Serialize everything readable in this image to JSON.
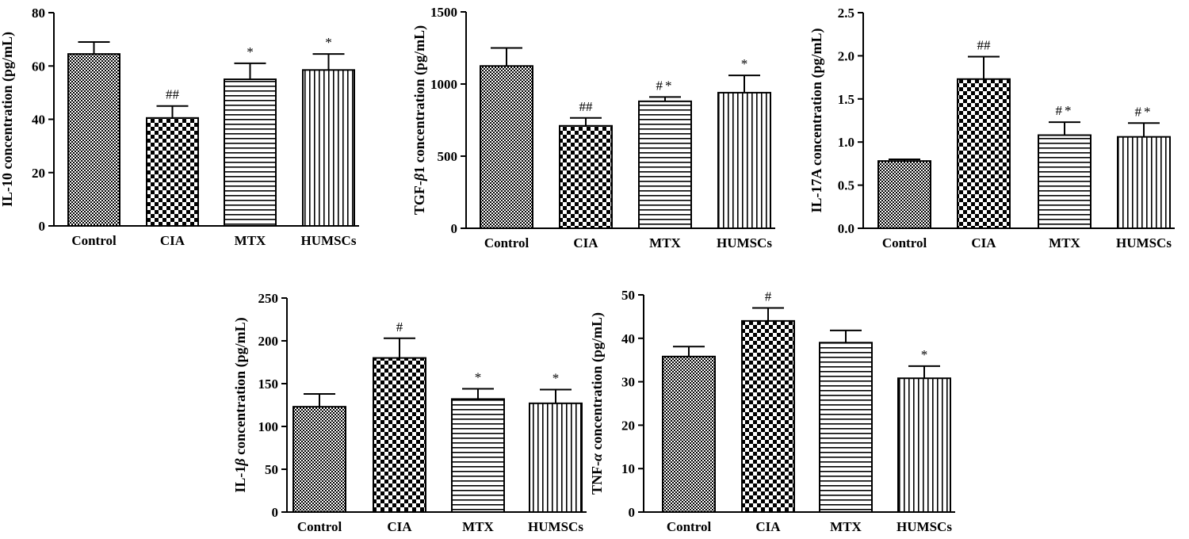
{
  "chart_data": [
    {
      "type": "bar",
      "ylabel": "IL-10 concentration (pg/mL)",
      "ylabel_parts": [
        {
          "t": "IL-10 concentration (pg/mL)",
          "i": false
        }
      ],
      "categories": [
        "Control",
        "CIA",
        "MTX",
        "HUMSCs"
      ],
      "values": [
        64.5,
        40.5,
        55,
        58.5
      ],
      "errors": [
        4.5,
        4.5,
        6,
        6
      ],
      "annotations": [
        "",
        "##",
        "*",
        "*"
      ],
      "ylim": [
        0,
        80
      ],
      "yticks": [
        0,
        20,
        40,
        60,
        80
      ],
      "ytick_labels": [
        "0",
        "20",
        "40",
        "60",
        "80"
      ]
    },
    {
      "type": "bar",
      "ylabel": "TGF-β1 concentration (pg/mL)",
      "ylabel_parts": [
        {
          "t": "TGF-",
          "i": false
        },
        {
          "t": "β",
          "i": true
        },
        {
          "t": "1 concentration (pg/mL)",
          "i": false
        }
      ],
      "categories": [
        "Control",
        "CIA",
        "MTX",
        "HUMSCs"
      ],
      "values": [
        1125,
        710,
        880,
        940
      ],
      "errors": [
        125,
        55,
        30,
        120
      ],
      "annotations": [
        "",
        "##",
        "#*",
        "*"
      ],
      "ylim": [
        0,
        1500
      ],
      "yticks": [
        0,
        500,
        1000,
        1500
      ],
      "ytick_labels": [
        "0",
        "500",
        "1000",
        "1500"
      ]
    },
    {
      "type": "bar",
      "ylabel": "IL-17A concentration (pg/mL)",
      "ylabel_parts": [
        {
          "t": "IL-17A concentration (pg/mL)",
          "i": false
        }
      ],
      "categories": [
        "Control",
        "CIA",
        "MTX",
        "HUMSCs"
      ],
      "values": [
        0.78,
        1.73,
        1.08,
        1.06
      ],
      "errors": [
        0.02,
        0.26,
        0.15,
        0.16
      ],
      "annotations": [
        "",
        "##",
        "#*",
        "#*"
      ],
      "ylim": [
        0,
        2.5
      ],
      "yticks": [
        0,
        0.5,
        1.0,
        1.5,
        2.0,
        2.5
      ],
      "ytick_labels": [
        "0.0",
        "0.5",
        "1.0",
        "1.5",
        "2.0",
        "2.5"
      ]
    },
    {
      "type": "bar",
      "ylabel": "IL-1β concentration (pg/mL)",
      "ylabel_parts": [
        {
          "t": "IL-1",
          "i": false
        },
        {
          "t": "β",
          "i": true
        },
        {
          "t": " concentration (pg/mL)",
          "i": false
        }
      ],
      "categories": [
        "Control",
        "CIA",
        "MTX",
        "HUMSCs"
      ],
      "values": [
        123,
        180,
        132,
        127
      ],
      "errors": [
        15,
        23,
        12,
        16
      ],
      "annotations": [
        "",
        "#",
        "*",
        "*"
      ],
      "ylim": [
        0,
        250
      ],
      "yticks": [
        0,
        50,
        100,
        150,
        200,
        250
      ],
      "ytick_labels": [
        "0",
        "50",
        "100",
        "150",
        "200",
        "250"
      ]
    },
    {
      "type": "bar",
      "ylabel": "TNF-α concentration (pg/mL)",
      "ylabel_parts": [
        {
          "t": "TNF-",
          "i": false
        },
        {
          "t": "α",
          "i": true
        },
        {
          "t": " concentration (pg/mL)",
          "i": false
        }
      ],
      "categories": [
        "Control",
        "CIA",
        "MTX",
        "HUMSCs"
      ],
      "values": [
        35.8,
        44,
        39,
        30.8
      ],
      "errors": [
        2.3,
        3,
        2.8,
        2.8
      ],
      "annotations": [
        "",
        "#",
        "",
        "*"
      ],
      "ylim": [
        0,
        50
      ],
      "yticks": [
        0,
        10,
        20,
        30,
        40,
        50
      ],
      "ytick_labels": [
        "0",
        "10",
        "20",
        "30",
        "40",
        "50"
      ]
    }
  ]
}
